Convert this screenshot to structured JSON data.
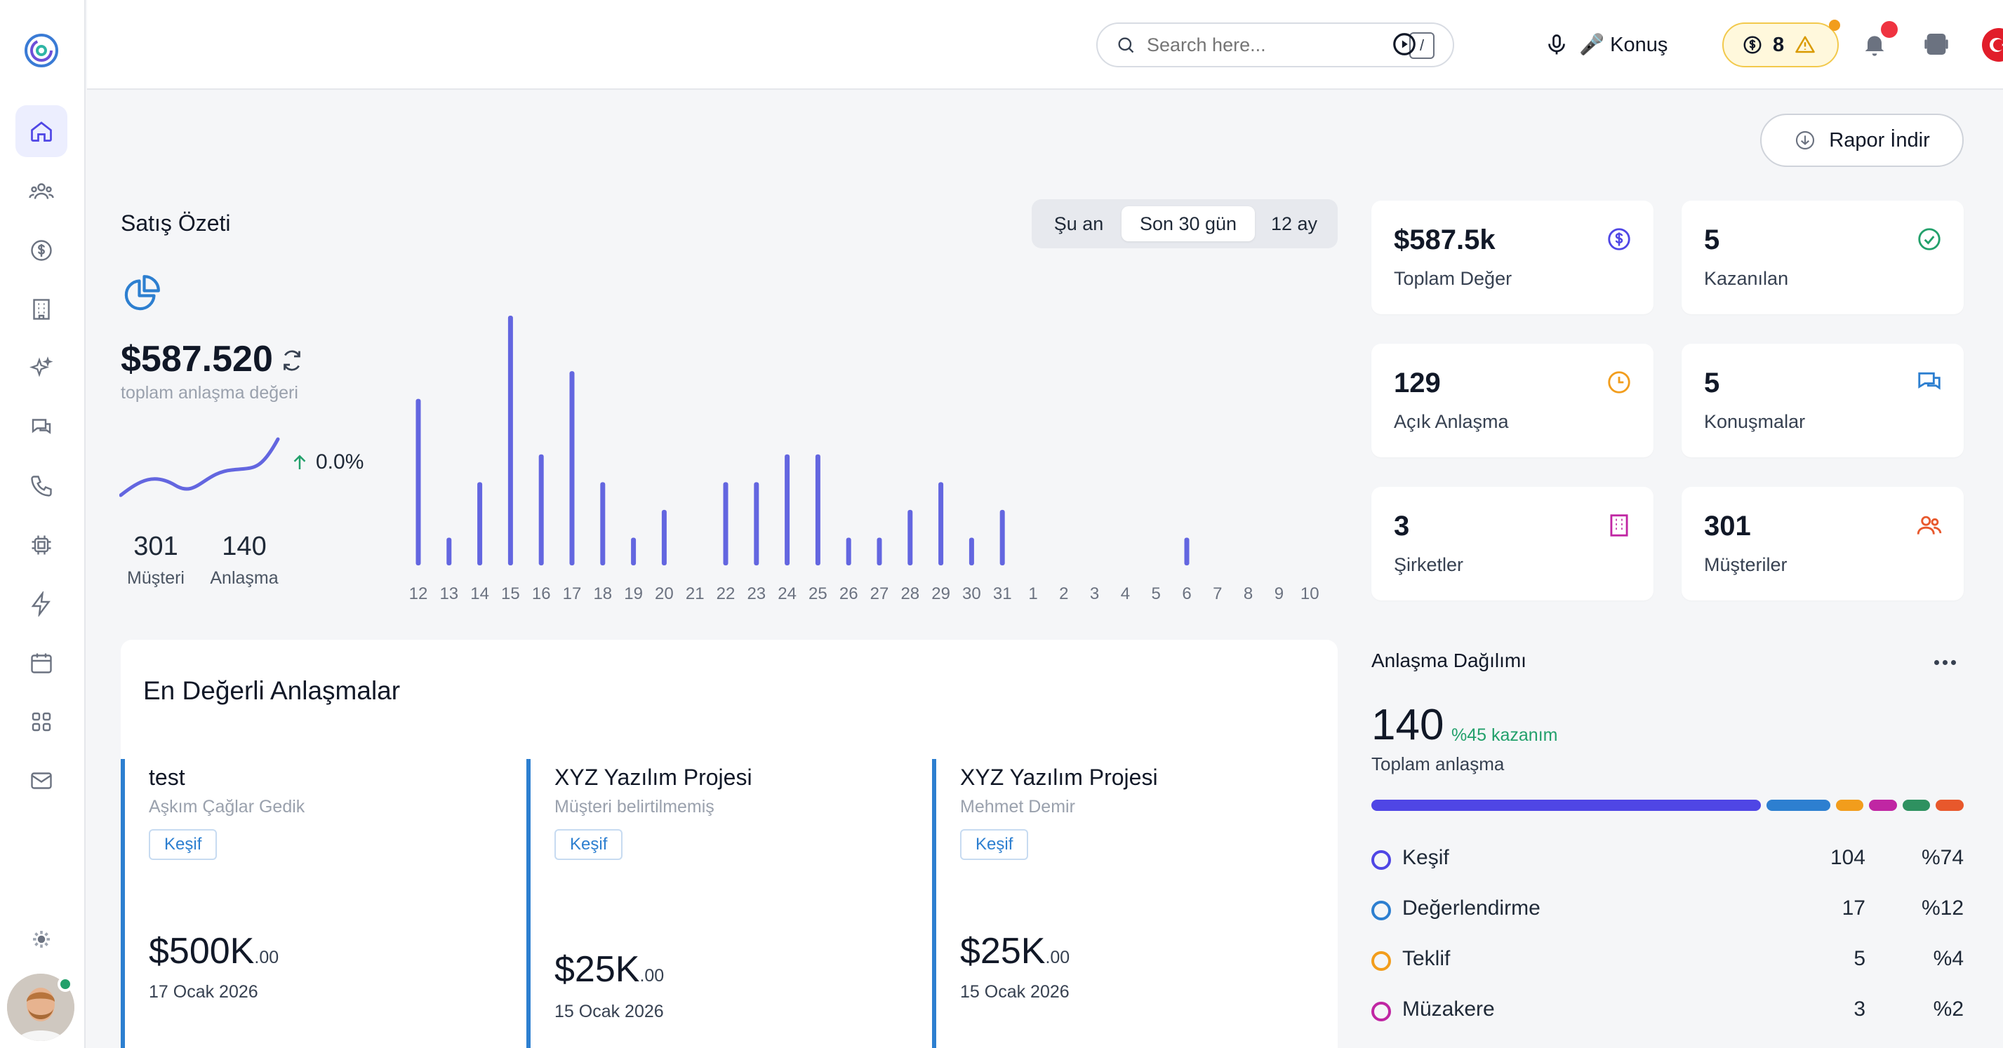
{
  "header": {
    "search": {
      "placeholder": "Search here...",
      "shortcut": "/"
    },
    "voice_label": "🎤 Konuş",
    "credits": "8"
  },
  "actions": {
    "report_label": "Rapor İndir"
  },
  "sales": {
    "title": "Satış Özeti",
    "periods": [
      "Şu an",
      "Son 30 gün",
      "12 ay"
    ],
    "active_period": "Son 30 gün",
    "total": "$587.520",
    "total_label": "toplam anlaşma değeri",
    "growth": "0.0%",
    "customers": "301",
    "customers_label": "Müşteri",
    "deals": "140",
    "deals_label": "Anlaşma"
  },
  "chart_data": {
    "type": "bar",
    "categories": [
      "12",
      "13",
      "14",
      "15",
      "16",
      "17",
      "18",
      "19",
      "20",
      "21",
      "22",
      "23",
      "24",
      "25",
      "26",
      "27",
      "28",
      "29",
      "30",
      "31",
      "1",
      "2",
      "3",
      "4",
      "5",
      "6",
      "7",
      "8",
      "9",
      "10"
    ],
    "values": [
      6,
      1,
      3,
      9,
      4,
      7,
      3,
      1,
      2,
      0,
      3,
      3,
      4,
      4,
      1,
      1,
      2,
      3,
      1,
      2,
      0,
      0,
      0,
      0,
      0,
      1,
      0,
      0,
      0,
      0
    ],
    "ylim": [
      0,
      9
    ],
    "color": "#6366e0"
  },
  "kpis": [
    {
      "value": "$587.5k",
      "label": "Toplam Değer",
      "icon": "dollar-icon",
      "color": "#4f46e5"
    },
    {
      "value": "5",
      "label": "Kazanılan",
      "icon": "check-circle-icon",
      "color": "#22a06b"
    },
    {
      "value": "129",
      "label": "Açık Anlaşma",
      "icon": "clock-icon",
      "color": "#f29d1c"
    },
    {
      "value": "5",
      "label": "Konuşmalar",
      "icon": "chat-icon",
      "color": "#2d7fd0"
    },
    {
      "value": "3",
      "label": "Şirketler",
      "icon": "building-icon",
      "color": "#c026a3"
    },
    {
      "value": "301",
      "label": "Müşteriler",
      "icon": "users-icon",
      "color": "#e8582c"
    }
  ],
  "top_deals": {
    "title": "En Değerli Anlaşmalar",
    "items": [
      {
        "title": "test",
        "customer": "Aşkım Çağlar Gedik",
        "stage": "Keşif",
        "amount": "$500K",
        "cents": ".00",
        "date": "17 Ocak 2026"
      },
      {
        "title": "XYZ Yazılım Projesi",
        "customer": "Müşteri belirtilmemiş",
        "stage": "Keşif",
        "amount": "$25K",
        "cents": ".00",
        "date": "15 Ocak 2026"
      },
      {
        "title": "XYZ Yazılım Projesi",
        "customer": "Mehmet Demir",
        "stage": "Keşif",
        "amount": "$25K",
        "cents": ".00",
        "date": "15 Ocak 2026"
      }
    ]
  },
  "distribution": {
    "title": "Anlaşma Dağılımı",
    "total": "140",
    "win_rate": "%45 kazanım",
    "total_label": "Toplam anlaşma",
    "stages": [
      {
        "name": "Keşif",
        "count": "104",
        "pct": "%74",
        "color": "#4f46e5"
      },
      {
        "name": "Değerlendirme",
        "count": "17",
        "pct": "%12",
        "color": "#2d7fd0"
      },
      {
        "name": "Teklif",
        "count": "5",
        "pct": "%4",
        "color": "#f29d1c"
      },
      {
        "name": "Müzakere",
        "count": "3",
        "pct": "%2",
        "color": "#c026a3"
      }
    ],
    "bar_segments": [
      {
        "color": "#4f46e5",
        "share": 0.675
      },
      {
        "color": "#2d7fd0",
        "share": 0.11
      },
      {
        "color": "#f29d1c",
        "share": 0.048
      },
      {
        "color": "#c026a3",
        "share": 0.048
      },
      {
        "color": "#2e9160",
        "share": 0.048
      },
      {
        "color": "#e8582c",
        "share": 0.048
      }
    ]
  }
}
